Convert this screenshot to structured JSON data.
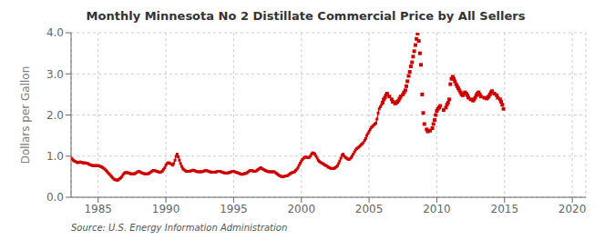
{
  "chart_data": {
    "type": "line",
    "title": "Monthly Minnesota No 2 Distillate Commercial Price by All Sellers",
    "y_label": "Dollars per Gallon",
    "source": "Source: U.S. Energy Information Administration",
    "xlim": [
      1983,
      2021
    ],
    "ylim": [
      0.0,
      4.0
    ],
    "xticks": [
      1985,
      1990,
      1995,
      2000,
      2005,
      2010,
      2015,
      2020
    ],
    "yticks": [
      {
        "value": 0.0,
        "label": "0.0"
      },
      {
        "value": 1.0,
        "label": "1.0"
      },
      {
        "value": 2.0,
        "label": "2.0"
      },
      {
        "value": 3.0,
        "label": "3.0"
      },
      {
        "value": 4.0,
        "label": "4.0"
      }
    ],
    "grid": true,
    "series": [
      {
        "type": "line",
        "color": "#cc0000",
        "marker": "square",
        "x": [
          1983.0,
          1983.08,
          1983.17,
          1983.25,
          1983.33,
          1983.42,
          1983.5,
          1983.58,
          1983.67,
          1983.75,
          1983.83,
          1983.92,
          1984.0,
          1984.08,
          1984.17,
          1984.25,
          1984.33,
          1984.42,
          1984.5,
          1984.58,
          1984.67,
          1984.75,
          1984.83,
          1984.92,
          1985.0,
          1985.08,
          1985.17,
          1985.25,
          1985.33,
          1985.42,
          1985.5,
          1985.58,
          1985.67,
          1985.75,
          1985.83,
          1985.92,
          1986.0,
          1986.08,
          1986.17,
          1986.25,
          1986.33,
          1986.42,
          1986.5,
          1986.58,
          1986.67,
          1986.75,
          1986.83,
          1986.92,
          1987.0,
          1987.08,
          1987.17,
          1987.25,
          1987.33,
          1987.42,
          1987.5,
          1987.58,
          1987.67,
          1987.75,
          1987.83,
          1987.92,
          1988.0,
          1988.08,
          1988.17,
          1988.25,
          1988.33,
          1988.42,
          1988.5,
          1988.58,
          1988.67,
          1988.75,
          1988.83,
          1988.92,
          1989.0,
          1989.08,
          1989.17,
          1989.25,
          1989.33,
          1989.42,
          1989.5,
          1989.58,
          1989.67,
          1989.75,
          1989.83,
          1989.92,
          1990.0,
          1990.08,
          1990.17,
          1990.25,
          1990.33,
          1990.42,
          1990.5,
          1990.58,
          1990.67,
          1990.75,
          1990.83,
          1990.92,
          1991.0,
          1991.08,
          1991.17,
          1991.25,
          1991.33,
          1991.42,
          1991.5,
          1991.58,
          1991.67,
          1991.75,
          1991.83,
          1991.92,
          1992.0,
          1992.08,
          1992.17,
          1992.25,
          1992.33,
          1992.42,
          1992.5,
          1992.58,
          1992.67,
          1992.75,
          1992.83,
          1992.92,
          1993.0,
          1993.08,
          1993.17,
          1993.25,
          1993.33,
          1993.42,
          1993.5,
          1993.58,
          1993.67,
          1993.75,
          1993.83,
          1993.92,
          1994.0,
          1994.08,
          1994.17,
          1994.25,
          1994.33,
          1994.42,
          1994.5,
          1994.58,
          1994.67,
          1994.75,
          1994.83,
          1994.92,
          1995.0,
          1995.08,
          1995.17,
          1995.25,
          1995.33,
          1995.42,
          1995.5,
          1995.58,
          1995.67,
          1995.75,
          1995.83,
          1995.92,
          1996.0,
          1996.08,
          1996.17,
          1996.25,
          1996.33,
          1996.42,
          1996.5,
          1996.58,
          1996.67,
          1996.75,
          1996.83,
          1996.92,
          1997.0,
          1997.08,
          1997.17,
          1997.25,
          1997.33,
          1997.42,
          1997.5,
          1997.58,
          1997.67,
          1997.75,
          1997.83,
          1997.92,
          1998.0,
          1998.08,
          1998.17,
          1998.25,
          1998.33,
          1998.42,
          1998.5,
          1998.58,
          1998.67,
          1998.75,
          1998.83,
          1998.92,
          1999.0,
          1999.08,
          1999.17,
          1999.25,
          1999.33,
          1999.42,
          1999.5,
          1999.58,
          1999.67,
          1999.75,
          1999.83,
          1999.92,
          2000.0,
          2000.08,
          2000.17,
          2000.25,
          2000.33,
          2000.42,
          2000.5,
          2000.58,
          2000.67,
          2000.75,
          2000.83,
          2000.92,
          2001.0,
          2001.08,
          2001.17,
          2001.25,
          2001.33,
          2001.42,
          2001.5,
          2001.58,
          2001.67,
          2001.75,
          2001.83,
          2001.92,
          2002.0,
          2002.08,
          2002.17,
          2002.25,
          2002.33,
          2002.42,
          2002.5,
          2002.58,
          2002.67,
          2002.75,
          2002.83,
          2002.92,
          2003.0,
          2003.08,
          2003.17,
          2003.25,
          2003.33,
          2003.42,
          2003.5,
          2003.58,
          2003.67,
          2003.75,
          2003.83,
          2003.92,
          2004.0,
          2004.08,
          2004.17,
          2004.25,
          2004.33,
          2004.42,
          2004.5,
          2004.58,
          2004.67,
          2004.75,
          2004.83,
          2004.92,
          2005.0,
          2005.08,
          2005.17,
          2005.25,
          2005.33,
          2005.42,
          2005.5,
          2005.58,
          2005.67,
          2005.75,
          2005.83,
          2005.92
        ],
        "values": [
          0.95,
          0.93,
          0.9,
          0.88,
          0.87,
          0.85,
          0.84,
          0.85,
          0.86,
          0.85,
          0.84,
          0.83,
          0.84,
          0.83,
          0.83,
          0.82,
          0.8,
          0.79,
          0.78,
          0.77,
          0.77,
          0.77,
          0.77,
          0.77,
          0.77,
          0.76,
          0.75,
          0.74,
          0.72,
          0.7,
          0.68,
          0.65,
          0.62,
          0.59,
          0.56,
          0.53,
          0.5,
          0.47,
          0.44,
          0.43,
          0.42,
          0.41,
          0.43,
          0.45,
          0.47,
          0.5,
          0.55,
          0.58,
          0.6,
          0.6,
          0.6,
          0.59,
          0.58,
          0.57,
          0.57,
          0.57,
          0.57,
          0.58,
          0.6,
          0.62,
          0.63,
          0.62,
          0.6,
          0.59,
          0.58,
          0.57,
          0.57,
          0.57,
          0.57,
          0.58,
          0.6,
          0.62,
          0.64,
          0.65,
          0.65,
          0.64,
          0.63,
          0.62,
          0.61,
          0.61,
          0.62,
          0.64,
          0.68,
          0.72,
          0.78,
          0.82,
          0.84,
          0.83,
          0.82,
          0.8,
          0.78,
          0.82,
          0.9,
          1.0,
          1.05,
          0.98,
          0.9,
          0.82,
          0.75,
          0.7,
          0.67,
          0.65,
          0.63,
          0.63,
          0.63,
          0.63,
          0.64,
          0.65,
          0.66,
          0.65,
          0.64,
          0.63,
          0.62,
          0.62,
          0.62,
          0.62,
          0.62,
          0.63,
          0.64,
          0.65,
          0.65,
          0.64,
          0.63,
          0.62,
          0.61,
          0.61,
          0.61,
          0.61,
          0.61,
          0.62,
          0.63,
          0.63,
          0.63,
          0.62,
          0.61,
          0.6,
          0.59,
          0.59,
          0.59,
          0.59,
          0.6,
          0.61,
          0.62,
          0.63,
          0.63,
          0.62,
          0.61,
          0.6,
          0.59,
          0.58,
          0.57,
          0.56,
          0.56,
          0.57,
          0.58,
          0.58,
          0.6,
          0.62,
          0.64,
          0.65,
          0.65,
          0.64,
          0.63,
          0.63,
          0.64,
          0.66,
          0.68,
          0.7,
          0.72,
          0.7,
          0.68,
          0.67,
          0.65,
          0.64,
          0.63,
          0.62,
          0.62,
          0.62,
          0.62,
          0.62,
          0.62,
          0.6,
          0.58,
          0.56,
          0.54,
          0.52,
          0.51,
          0.5,
          0.5,
          0.51,
          0.52,
          0.52,
          0.53,
          0.55,
          0.57,
          0.59,
          0.6,
          0.61,
          0.62,
          0.65,
          0.68,
          0.72,
          0.78,
          0.83,
          0.88,
          0.92,
          0.95,
          0.97,
          0.98,
          0.97,
          0.96,
          0.97,
          1.0,
          1.05,
          1.08,
          1.07,
          1.05,
          1.0,
          0.95,
          0.9,
          0.87,
          0.85,
          0.83,
          0.82,
          0.8,
          0.78,
          0.77,
          0.75,
          0.73,
          0.72,
          0.7,
          0.7,
          0.7,
          0.7,
          0.72,
          0.74,
          0.77,
          0.82,
          0.88,
          0.95,
          1.02,
          1.05,
          1.0,
          0.97,
          0.95,
          0.93,
          0.92,
          0.93,
          0.96,
          1.0,
          1.05,
          1.1,
          1.15,
          1.18,
          1.2,
          1.22,
          1.25,
          1.28,
          1.3,
          1.33,
          1.38,
          1.43,
          1.5,
          1.55,
          1.6,
          1.65,
          1.7,
          1.72,
          1.75,
          1.78,
          1.8,
          1.9,
          2.05,
          2.15,
          2.2,
          2.25
        ]
      },
      {
        "type": "scatter",
        "color": "#cc0000",
        "marker": "square",
        "x": [
          2006.0,
          2006.08,
          2006.17,
          2006.25,
          2006.33,
          2006.5,
          2006.67,
          2006.75,
          2006.92,
          2007.0,
          2007.08,
          2007.17,
          2007.25,
          2007.33,
          2007.5,
          2007.58,
          2007.67,
          2007.75,
          2007.83,
          2007.92,
          2008.0,
          2008.08,
          2008.17,
          2008.25,
          2008.33,
          2008.42,
          2008.5,
          2008.58,
          2008.67,
          2008.75,
          2008.83,
          2008.92,
          2009.0,
          2009.08,
          2009.25,
          2009.33,
          2009.5,
          2009.67,
          2009.75,
          2009.83,
          2009.92,
          2010.0,
          2010.08,
          2010.17,
          2010.25,
          2010.5,
          2010.67,
          2010.75,
          2010.83,
          2010.92,
          2011.0,
          2011.08,
          2011.17,
          2011.25,
          2011.33,
          2011.42,
          2011.5,
          2011.58,
          2011.67,
          2011.75,
          2011.83,
          2011.92,
          2012.0,
          2012.08,
          2012.17,
          2012.25,
          2012.33,
          2012.5,
          2012.67,
          2012.75,
          2012.83,
          2012.92,
          2013.0,
          2013.08,
          2013.17,
          2013.25,
          2013.5,
          2013.67,
          2013.75,
          2013.83,
          2013.92,
          2014.0,
          2014.08,
          2014.25,
          2014.42,
          2014.5,
          2014.67,
          2014.75,
          2014.83,
          2014.92
        ],
        "values": [
          2.3,
          2.38,
          2.42,
          2.48,
          2.52,
          2.45,
          2.38,
          2.32,
          2.28,
          2.3,
          2.32,
          2.35,
          2.4,
          2.45,
          2.5,
          2.55,
          2.6,
          2.7,
          2.82,
          2.95,
          3.05,
          3.18,
          3.28,
          3.42,
          3.55,
          3.7,
          3.85,
          3.98,
          3.8,
          3.5,
          3.22,
          2.5,
          2.05,
          1.78,
          1.65,
          1.6,
          1.62,
          1.68,
          1.78,
          1.88,
          2.0,
          2.1,
          2.15,
          2.18,
          2.22,
          2.12,
          2.18,
          2.25,
          2.3,
          2.38,
          2.75,
          2.88,
          2.93,
          2.88,
          2.82,
          2.75,
          2.7,
          2.65,
          2.6,
          2.55,
          2.5,
          2.48,
          2.52,
          2.55,
          2.52,
          2.48,
          2.42,
          2.38,
          2.35,
          2.38,
          2.42,
          2.48,
          2.52,
          2.55,
          2.5,
          2.45,
          2.42,
          2.4,
          2.42,
          2.45,
          2.5,
          2.55,
          2.58,
          2.52,
          2.48,
          2.42,
          2.38,
          2.32,
          2.25,
          2.15
        ]
      }
    ]
  }
}
